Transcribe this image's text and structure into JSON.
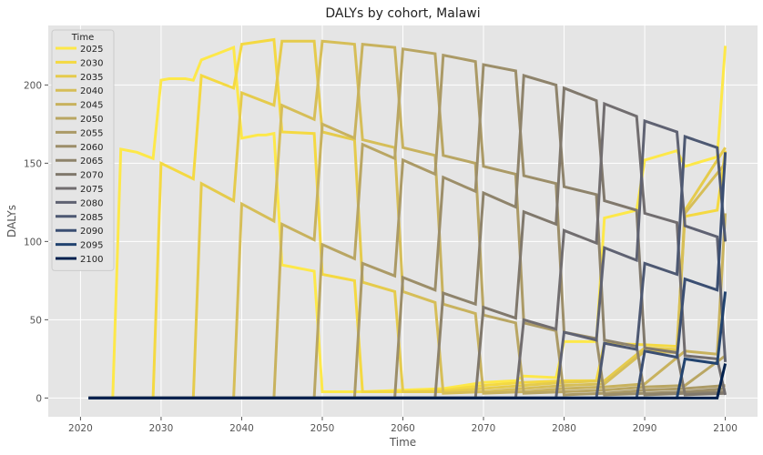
{
  "chart_data": {
    "type": "line",
    "title": "DALYs by cohort, Malawi",
    "xlabel": "Time",
    "ylabel": "DALYs",
    "xlim": [
      2016,
      2104
    ],
    "ylim": [
      -12,
      238
    ],
    "xticks": [
      2020,
      2030,
      2040,
      2050,
      2060,
      2070,
      2080,
      2090,
      2100
    ],
    "yticks": [
      0,
      50,
      100,
      150,
      200
    ],
    "grid": true,
    "legend": {
      "title": "Time",
      "placement": "top-left"
    },
    "series": [
      {
        "name": "2025",
        "color": "#fde849",
        "points": [
          [
            2021,
            0
          ],
          [
            2024,
            0
          ],
          [
            2025,
            159
          ],
          [
            2026,
            158
          ],
          [
            2027,
            157
          ],
          [
            2028,
            155
          ],
          [
            2029,
            153
          ],
          [
            2030,
            203
          ],
          [
            2031,
            204
          ],
          [
            2032,
            204
          ],
          [
            2033,
            204
          ],
          [
            2034,
            203
          ],
          [
            2035,
            216
          ],
          [
            2036,
            218
          ],
          [
            2037,
            220
          ],
          [
            2038,
            222
          ],
          [
            2039,
            224
          ],
          [
            2040,
            166
          ],
          [
            2041,
            167
          ],
          [
            2042,
            168
          ],
          [
            2043,
            168
          ],
          [
            2044,
            169
          ],
          [
            2045,
            85
          ],
          [
            2046,
            84
          ],
          [
            2047,
            83
          ],
          [
            2048,
            82
          ],
          [
            2049,
            81
          ],
          [
            2050,
            4
          ],
          [
            2055,
            4
          ],
          [
            2060,
            5
          ],
          [
            2065,
            6
          ],
          [
            2070,
            10
          ],
          [
            2074,
            11
          ],
          [
            2075,
            14
          ],
          [
            2079,
            13
          ],
          [
            2080,
            36
          ],
          [
            2084,
            36
          ],
          [
            2085,
            115
          ],
          [
            2089,
            120
          ],
          [
            2090,
            152
          ],
          [
            2094,
            158
          ],
          [
            2095,
            148
          ],
          [
            2099,
            154
          ],
          [
            2100,
            225
          ]
        ]
      },
      {
        "name": "2030",
        "color": "#f4d942",
        "points": [
          [
            2021,
            0
          ],
          [
            2029,
            0
          ],
          [
            2030,
            150
          ],
          [
            2034,
            140
          ],
          [
            2035,
            206
          ],
          [
            2039,
            198
          ],
          [
            2040,
            226
          ],
          [
            2044,
            229
          ],
          [
            2045,
            170
          ],
          [
            2049,
            169
          ],
          [
            2050,
            79
          ],
          [
            2054,
            75
          ],
          [
            2055,
            4
          ],
          [
            2060,
            4
          ],
          [
            2065,
            5
          ],
          [
            2070,
            8
          ],
          [
            2075,
            10
          ],
          [
            2080,
            11
          ],
          [
            2084,
            11
          ],
          [
            2085,
            35
          ],
          [
            2090,
            34
          ],
          [
            2094,
            33
          ],
          [
            2095,
            116
          ],
          [
            2099,
            120
          ],
          [
            2100,
            158
          ]
        ]
      },
      {
        "name": "2035",
        "color": "#e5cb4c",
        "points": [
          [
            2021,
            0
          ],
          [
            2034,
            0
          ],
          [
            2035,
            137
          ],
          [
            2039,
            126
          ],
          [
            2040,
            195
          ],
          [
            2044,
            187
          ],
          [
            2045,
            228
          ],
          [
            2049,
            228
          ],
          [
            2050,
            170
          ],
          [
            2054,
            165
          ],
          [
            2055,
            74
          ],
          [
            2059,
            68
          ],
          [
            2060,
            4
          ],
          [
            2065,
            4
          ],
          [
            2070,
            6
          ],
          [
            2075,
            8
          ],
          [
            2080,
            10
          ],
          [
            2085,
            11
          ],
          [
            2090,
            32
          ],
          [
            2094,
            31
          ],
          [
            2095,
            120
          ],
          [
            2100,
            160
          ]
        ]
      },
      {
        "name": "2040",
        "color": "#d6be58",
        "points": [
          [
            2021,
            0
          ],
          [
            2039,
            0
          ],
          [
            2040,
            124
          ],
          [
            2044,
            113
          ],
          [
            2045,
            187
          ],
          [
            2049,
            178
          ],
          [
            2050,
            228
          ],
          [
            2054,
            226
          ],
          [
            2055,
            165
          ],
          [
            2059,
            160
          ],
          [
            2060,
            68
          ],
          [
            2064,
            61
          ],
          [
            2065,
            3
          ],
          [
            2070,
            4
          ],
          [
            2075,
            6
          ],
          [
            2080,
            8
          ],
          [
            2085,
            9
          ],
          [
            2090,
            30
          ],
          [
            2094,
            29
          ],
          [
            2095,
            118
          ],
          [
            2100,
            150
          ]
        ]
      },
      {
        "name": "2045",
        "color": "#c8b25e",
        "points": [
          [
            2021,
            0
          ],
          [
            2044,
            0
          ],
          [
            2045,
            111
          ],
          [
            2049,
            101
          ],
          [
            2050,
            175
          ],
          [
            2054,
            166
          ],
          [
            2055,
            226
          ],
          [
            2059,
            224
          ],
          [
            2060,
            160
          ],
          [
            2064,
            155
          ],
          [
            2065,
            60
          ],
          [
            2069,
            54
          ],
          [
            2070,
            3
          ],
          [
            2075,
            4
          ],
          [
            2080,
            6
          ],
          [
            2085,
            7
          ],
          [
            2090,
            9
          ],
          [
            2095,
            30
          ],
          [
            2099,
            28
          ],
          [
            2100,
            118
          ]
        ]
      },
      {
        "name": "2050",
        "color": "#b9a663",
        "points": [
          [
            2021,
            0
          ],
          [
            2049,
            0
          ],
          [
            2050,
            98
          ],
          [
            2054,
            89
          ],
          [
            2055,
            162
          ],
          [
            2059,
            153
          ],
          [
            2060,
            223
          ],
          [
            2064,
            220
          ],
          [
            2065,
            155
          ],
          [
            2069,
            150
          ],
          [
            2070,
            53
          ],
          [
            2074,
            48
          ],
          [
            2075,
            3
          ],
          [
            2080,
            4
          ],
          [
            2085,
            5
          ],
          [
            2090,
            7
          ],
          [
            2095,
            8
          ],
          [
            2100,
            27
          ]
        ]
      },
      {
        "name": "2055",
        "color": "#ab9a66",
        "points": [
          [
            2021,
            0
          ],
          [
            2054,
            0
          ],
          [
            2055,
            86
          ],
          [
            2059,
            78
          ],
          [
            2060,
            152
          ],
          [
            2064,
            143
          ],
          [
            2065,
            219
          ],
          [
            2069,
            215
          ],
          [
            2070,
            148
          ],
          [
            2074,
            143
          ],
          [
            2075,
            48
          ],
          [
            2079,
            43
          ],
          [
            2080,
            2
          ],
          [
            2085,
            3
          ],
          [
            2090,
            5
          ],
          [
            2095,
            6
          ],
          [
            2100,
            8
          ]
        ]
      },
      {
        "name": "2060",
        "color": "#9c8e69",
        "points": [
          [
            2021,
            0
          ],
          [
            2059,
            0
          ],
          [
            2060,
            77
          ],
          [
            2064,
            69
          ],
          [
            2065,
            141
          ],
          [
            2069,
            132
          ],
          [
            2070,
            213
          ],
          [
            2074,
            209
          ],
          [
            2075,
            142
          ],
          [
            2079,
            137
          ],
          [
            2080,
            42
          ],
          [
            2084,
            38
          ],
          [
            2085,
            2
          ],
          [
            2090,
            3
          ],
          [
            2095,
            4
          ],
          [
            2100,
            6
          ]
        ]
      },
      {
        "name": "2065",
        "color": "#8e836b",
        "points": [
          [
            2021,
            0
          ],
          [
            2064,
            0
          ],
          [
            2065,
            67
          ],
          [
            2069,
            60
          ],
          [
            2070,
            131
          ],
          [
            2074,
            122
          ],
          [
            2075,
            206
          ],
          [
            2079,
            200
          ],
          [
            2080,
            135
          ],
          [
            2084,
            130
          ],
          [
            2085,
            37
          ],
          [
            2089,
            33
          ],
          [
            2090,
            2
          ],
          [
            2095,
            3
          ],
          [
            2100,
            4
          ]
        ]
      },
      {
        "name": "2070",
        "color": "#80786c",
        "points": [
          [
            2021,
            0
          ],
          [
            2069,
            0
          ],
          [
            2070,
            58
          ],
          [
            2074,
            51
          ],
          [
            2075,
            119
          ],
          [
            2079,
            111
          ],
          [
            2080,
            198
          ],
          [
            2084,
            190
          ],
          [
            2085,
            126
          ],
          [
            2089,
            120
          ],
          [
            2090,
            32
          ],
          [
            2094,
            29
          ],
          [
            2095,
            2
          ],
          [
            2100,
            3
          ]
        ]
      },
      {
        "name": "2075",
        "color": "#716d6f",
        "points": [
          [
            2021,
            0
          ],
          [
            2074,
            0
          ],
          [
            2075,
            50
          ],
          [
            2079,
            44
          ],
          [
            2080,
            107
          ],
          [
            2084,
            99
          ],
          [
            2085,
            188
          ],
          [
            2089,
            180
          ],
          [
            2090,
            118
          ],
          [
            2094,
            112
          ],
          [
            2095,
            27
          ],
          [
            2099,
            25
          ],
          [
            2100,
            2
          ]
        ]
      },
      {
        "name": "2080",
        "color": "#5f6272",
        "points": [
          [
            2021,
            0
          ],
          [
            2079,
            0
          ],
          [
            2080,
            42
          ],
          [
            2084,
            37
          ],
          [
            2085,
            96
          ],
          [
            2089,
            88
          ],
          [
            2090,
            177
          ],
          [
            2094,
            170
          ],
          [
            2095,
            110
          ],
          [
            2099,
            103
          ],
          [
            2100,
            23
          ]
        ]
      },
      {
        "name": "2085",
        "color": "#4d5872",
        "points": [
          [
            2021,
            0
          ],
          [
            2084,
            0
          ],
          [
            2085,
            35
          ],
          [
            2089,
            31
          ],
          [
            2090,
            86
          ],
          [
            2094,
            79
          ],
          [
            2095,
            167
          ],
          [
            2099,
            160
          ],
          [
            2100,
            100
          ]
        ]
      },
      {
        "name": "2090",
        "color": "#3a4e72",
        "points": [
          [
            2021,
            0
          ],
          [
            2089,
            0
          ],
          [
            2090,
            30
          ],
          [
            2094,
            26
          ],
          [
            2095,
            76
          ],
          [
            2099,
            69
          ],
          [
            2100,
            157
          ]
        ]
      },
      {
        "name": "2095",
        "color": "#22436f",
        "points": [
          [
            2021,
            0
          ],
          [
            2094,
            0
          ],
          [
            2095,
            25
          ],
          [
            2099,
            22
          ],
          [
            2100,
            68
          ]
        ]
      },
      {
        "name": "2100",
        "color": "#00204d",
        "points": [
          [
            2021,
            0
          ],
          [
            2099,
            0
          ],
          [
            2100,
            22
          ]
        ]
      }
    ]
  }
}
